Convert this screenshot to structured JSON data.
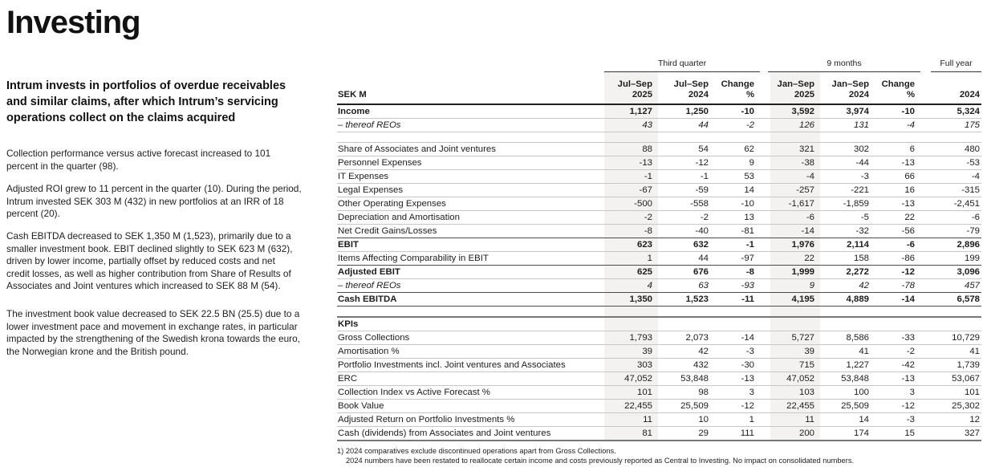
{
  "left": {
    "title": "Investing",
    "intro": "Intrum invests in portfolios of overdue receivables\nand similar claims, after which Intrum’s servicing\noperations collect on the claims acquired",
    "paragraphs": [
      "Collection performance versus active forecast increased to 101\npercent in the quarter (98).",
      "Adjusted ROI grew to 11 percent in the quarter (10). During the period,\nIntrum invested SEK 303 M (432) in new portfolios at an IRR of 18\npercent (20).",
      "Cash EBITDA decreased to SEK 1,350 M (1,523), primarily due to a\nsmaller investment book. EBIT declined slightly to SEK 623 M (632),\ndriven by lower income, partially offset by reduced costs and net\ncredit losses, as well as higher contribution from Share of Results of\nAssociates and Joint ventures which increased to SEK 88 M (54).",
      "The investment book value decreased to SEK 22.5 BN (25.5) due to a\nlower investment pace and movement in exchange rates, in particular\nimpacted by the strengthening of the Swedish krona towards the euro,\nthe Norwegian krone and the British pound."
    ]
  },
  "colors": {
    "column_highlight": "#f3f2f0",
    "text": "#1d1d1b"
  },
  "table": {
    "unit_label": "SEK M",
    "group_headers": [
      "Third quarter",
      "9 months",
      "Full year"
    ],
    "column_headers": [
      "Jul–Sep\n2025",
      "Jul–Sep\n2024",
      "Change\n%",
      "Jan–Sep\n2025",
      "Jan–Sep\n2024",
      "Change\n%",
      "2024"
    ],
    "rows": [
      {
        "label": "Income",
        "style": "bold",
        "values": [
          "1,127",
          "1,250",
          "-10",
          "3,592",
          "3,974",
          "-10",
          "5,324"
        ]
      },
      {
        "label": "– thereof REOs",
        "style": "italic",
        "values": [
          "43",
          "44",
          "-2",
          "126",
          "131",
          "-4",
          "175"
        ]
      },
      {
        "style": "spacer"
      },
      {
        "label": "Share of Associates and Joint ventures",
        "style": "normal",
        "values": [
          "88",
          "54",
          "62",
          "321",
          "302",
          "6",
          "480"
        ]
      },
      {
        "label": "Personnel Expenses",
        "style": "normal",
        "values": [
          "-13",
          "-12",
          "9",
          "-38",
          "-44",
          "-13",
          "-53"
        ]
      },
      {
        "label": "IT Expenses",
        "style": "normal",
        "values": [
          "-1",
          "-1",
          "53",
          "-4",
          "-3",
          "66",
          "-4"
        ]
      },
      {
        "label": "Legal Expenses",
        "style": "normal",
        "values": [
          "-67",
          "-59",
          "14",
          "-257",
          "-221",
          "16",
          "-315"
        ]
      },
      {
        "label": "Other Operating Expenses",
        "style": "normal",
        "values": [
          "-500",
          "-558",
          "-10",
          "-1,617",
          "-1,859",
          "-13",
          "-2,451"
        ]
      },
      {
        "label": "Depreciation and Amortisation",
        "style": "normal",
        "values": [
          "-2",
          "-2",
          "13",
          "-6",
          "-5",
          "22",
          "-6"
        ]
      },
      {
        "label": "Net Credit Gains/Losses",
        "style": "normal",
        "bb": "dark",
        "values": [
          "-8",
          "-40",
          "-81",
          "-14",
          "-32",
          "-56",
          "-79"
        ]
      },
      {
        "label": "EBIT",
        "style": "bold",
        "values": [
          "623",
          "632",
          "-1",
          "1,976",
          "2,114",
          "-6",
          "2,896"
        ]
      },
      {
        "label": "Items Affecting Comparability in EBIT",
        "style": "normal",
        "bb": "dark",
        "values": [
          "1",
          "44",
          "-97",
          "22",
          "158",
          "-86",
          "199"
        ]
      },
      {
        "label": "Adjusted EBIT",
        "style": "bold",
        "values": [
          "625",
          "676",
          "-8",
          "1,999",
          "2,272",
          "-12",
          "3,096"
        ]
      },
      {
        "label": "– thereof REOs",
        "style": "italic",
        "bb": "dark",
        "values": [
          "4",
          "63",
          "-93",
          "9",
          "42",
          "-78",
          "457"
        ]
      },
      {
        "label": "Cash EBITDA",
        "style": "bold",
        "bb": "dark",
        "values": [
          "1,350",
          "1,523",
          "-11",
          "4,195",
          "4,889",
          "-14",
          "6,578"
        ]
      },
      {
        "style": "spacer",
        "bb": "thick"
      },
      {
        "label": "KPIs",
        "style": "section",
        "values": [
          "",
          "",
          "",
          "",
          "",
          "",
          ""
        ]
      },
      {
        "label": "Gross Collections",
        "style": "normal",
        "values": [
          "1,793",
          "2,073",
          "-14",
          "5,727",
          "8,586",
          "-33",
          "10,729"
        ]
      },
      {
        "label": "Amortisation %",
        "style": "normal",
        "values": [
          "39",
          "42",
          "-3",
          "39",
          "41",
          "-2",
          "41"
        ]
      },
      {
        "label": "Portfolio Investments incl. Joint ventures and Associates",
        "style": "normal",
        "values": [
          "303",
          "432",
          "-30",
          "715",
          "1,227",
          "-42",
          "1,739"
        ]
      },
      {
        "label": "ERC",
        "style": "normal",
        "values": [
          "47,052",
          "53,848",
          "-13",
          "47,052",
          "53,848",
          "-13",
          "53,067"
        ]
      },
      {
        "label": "Collection Index vs Active Forecast %",
        "style": "normal",
        "values": [
          "101",
          "98",
          "3",
          "103",
          "100",
          "3",
          "101"
        ]
      },
      {
        "label": "Book Value",
        "style": "normal",
        "values": [
          "22,455",
          "25,509",
          "-12",
          "22,455",
          "25,509",
          "-12",
          "25,302"
        ]
      },
      {
        "label": "Adjusted Return on Portfolio Investments %",
        "style": "normal",
        "values": [
          "11",
          "10",
          "1",
          "11",
          "14",
          "-3",
          "12"
        ]
      },
      {
        "label": "Cash (dividends) from Associates and Joint ventures",
        "style": "normal",
        "bb": "thick",
        "values": [
          "81",
          "29",
          "111",
          "200",
          "174",
          "15",
          "327"
        ]
      }
    ],
    "footnotes": [
      "1) 2024 comparatives exclude discontinued operations apart from Gross Collections.",
      "2024 numbers have been restated to reallocate certain income and costs previously reported as Central to Investing. No impact on consolidated numbers."
    ]
  }
}
